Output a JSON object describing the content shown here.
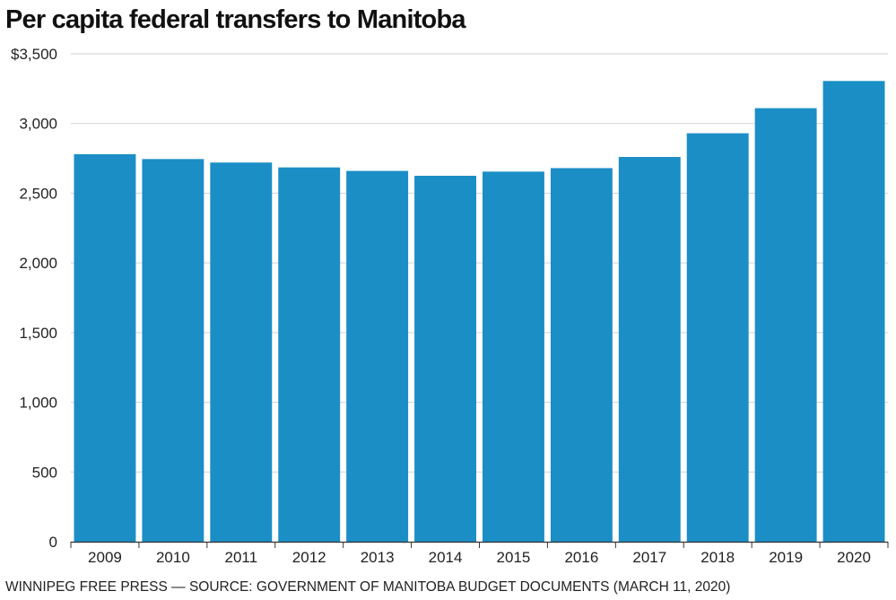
{
  "chart_data": {
    "type": "bar",
    "title": "Per capita federal transfers to Manitoba",
    "xlabel": "",
    "ylabel": "",
    "categories": [
      "2009",
      "2010",
      "2011",
      "2012",
      "2013",
      "2014",
      "2015",
      "2016",
      "2017",
      "2018",
      "2019",
      "2020"
    ],
    "values": [
      2780,
      2745,
      2720,
      2685,
      2660,
      2625,
      2655,
      2680,
      2760,
      2930,
      3110,
      3305
    ],
    "ylim": [
      0,
      3500
    ],
    "yticks": [
      0,
      500,
      1000,
      1500,
      2000,
      2500,
      3000,
      3500
    ],
    "ytick_labels": [
      "0",
      "500",
      "1,000",
      "1,500",
      "2,000",
      "2,500",
      "3,000",
      "$3,500"
    ],
    "grid": true,
    "bar_color": "#1b8ec6",
    "credit": "WINNIPEG FREE PRESS — SOURCE: GOVERNMENT OF MANITOBA BUDGET DOCUMENTS (MARCH 11, 2020)"
  }
}
